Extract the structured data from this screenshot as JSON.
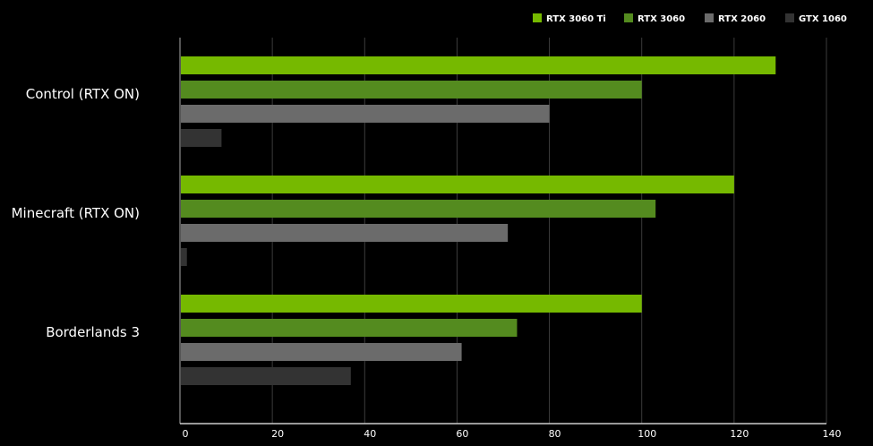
{
  "chart_data": {
    "type": "bar",
    "orientation": "horizontal",
    "title": "",
    "xlabel": "",
    "ylabel": "",
    "categories": [
      "Control (RTX ON)",
      "Minecraft (RTX ON)",
      "Borderlands 3"
    ],
    "series": [
      {
        "name": "RTX 3060 Ti",
        "color": "#76b900",
        "values": [
          129,
          120,
          100
        ]
      },
      {
        "name": "RTX 3060",
        "color": "#548b1f",
        "values": [
          100,
          103,
          73
        ]
      },
      {
        "name": "RTX 2060",
        "color": "#6b6b6b",
        "values": [
          80,
          71,
          61
        ]
      },
      {
        "name": "GTX 1060",
        "color": "#333333",
        "values": [
          9,
          1.5,
          37
        ]
      }
    ],
    "xlim": [
      0,
      140
    ],
    "xticks": [
      "0",
      "20",
      "40",
      "60",
      "80",
      "100",
      "120",
      "140"
    ],
    "grid": true,
    "legend": "top-right"
  }
}
